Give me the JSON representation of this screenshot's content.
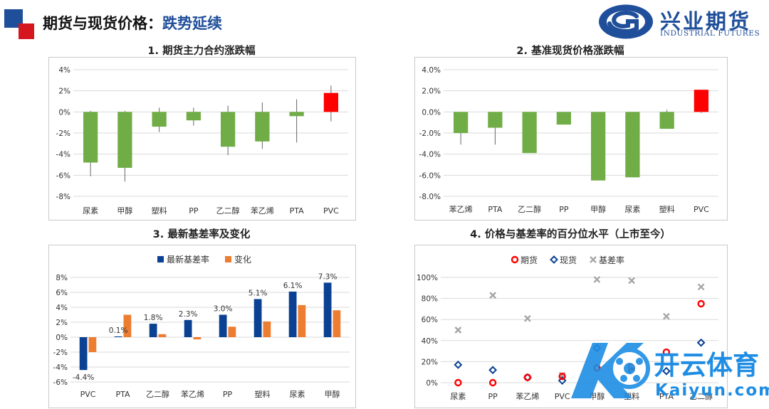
{
  "page": {
    "title_prefix": "期货与现货价格：",
    "title_highlight": "跌势延续"
  },
  "brand": {
    "name_cn": "兴业期货",
    "name_en": "INDUSTRIAL FUTURES"
  },
  "watermark": {
    "name_cn": "开云体育",
    "domain": "Kaiyun.com"
  },
  "colors": {
    "green": "#70ad47",
    "red": "#ff0000",
    "navy": "#0b4192",
    "orange": "#ed7d31",
    "gray": "#a6a6a6",
    "brand_blue": "#1f4e9a"
  },
  "chart_data": [
    {
      "id": "chart1",
      "type": "bar",
      "title": "1. 期货主力合约涨跌幅",
      "categories": [
        "尿素",
        "甲醇",
        "塑料",
        "PP",
        "乙二醇",
        "苯乙烯",
        "PTA",
        "PVC"
      ],
      "values": [
        -4.8,
        -5.3,
        -1.4,
        -0.8,
        -3.3,
        -2.8,
        -0.4,
        1.8
      ],
      "range_high": [
        0.1,
        0.1,
        0.4,
        0.4,
        0.6,
        0.9,
        1.2,
        2.5
      ],
      "range_low": [
        -6.1,
        -6.6,
        -1.9,
        -1.3,
        -4.1,
        -3.5,
        -2.9,
        -0.9
      ],
      "ylim": [
        -8,
        4
      ],
      "yticks": [
        "4%",
        "2%",
        "0%",
        "-2%",
        "-4%",
        "-6%",
        "-8%"
      ],
      "grid": true,
      "legend": "none"
    },
    {
      "id": "chart2",
      "type": "bar",
      "title": "2. 基准现货价格涨跌幅",
      "categories": [
        "苯乙烯",
        "PTA",
        "乙二醇",
        "PP",
        "甲醇",
        "尿素",
        "塑料",
        "PVC"
      ],
      "values": [
        -2.0,
        -1.5,
        -3.9,
        -1.2,
        -6.5,
        -6.2,
        -1.6,
        2.1
      ],
      "range_high": [
        0,
        0,
        0,
        0,
        0,
        0,
        0.2,
        2.1
      ],
      "range_low": [
        -3.1,
        -3.1,
        -3.9,
        -1.2,
        -6.5,
        -6.2,
        -1.6,
        -0.1
      ],
      "ylim": [
        -8,
        4
      ],
      "yticks": [
        "4.0%",
        "2.0%",
        "0.0%",
        "-2.0%",
        "-4.0%",
        "-6.0%",
        "-8.0%"
      ],
      "grid": true,
      "legend": "none"
    },
    {
      "id": "chart3",
      "type": "bar",
      "title": "3. 最新基差率及变化",
      "categories": [
        "PVC",
        "PTA",
        "乙二醇",
        "苯乙烯",
        "PP",
        "塑料",
        "尿素",
        "甲醇"
      ],
      "series": [
        {
          "name": "最新基差率",
          "values": [
            -4.4,
            0.1,
            1.8,
            2.3,
            3.0,
            5.1,
            6.1,
            7.3
          ],
          "labels": [
            "-4.4%",
            "0.1%",
            "1.8%",
            "2.3%",
            "3.0%",
            "5.1%",
            "6.1%",
            "7.3%"
          ]
        },
        {
          "name": "变化",
          "values": [
            -2.0,
            3.0,
            0.4,
            -0.3,
            1.4,
            2.1,
            4.3,
            3.6
          ]
        }
      ],
      "ylim": [
        -6,
        8
      ],
      "yticks": [
        "8%",
        "6%",
        "4%",
        "2%",
        "0%",
        "-2%",
        "-4%",
        "-6%"
      ],
      "grid": true,
      "legend": "top"
    },
    {
      "id": "chart4",
      "type": "scatter",
      "title": "4. 价格与基差率的百分位水平（上市至今）",
      "categories": [
        "尿素",
        "PP",
        "苯乙烯",
        "PVC",
        "甲醇",
        "塑料",
        "PTA",
        "乙二醇"
      ],
      "series": [
        {
          "name": "期货",
          "values": [
            0,
            0,
            5,
            6,
            14,
            15,
            29,
            75
          ]
        },
        {
          "name": "现货",
          "values": [
            17,
            12,
            5,
            2,
            33,
            11,
            11,
            38
          ]
        },
        {
          "name": "基差率",
          "values": [
            50,
            83,
            61,
            7,
            98,
            97,
            63,
            91
          ]
        }
      ],
      "ylim": [
        0,
        100
      ],
      "yticks": [
        "100%",
        "80%",
        "60%",
        "40%",
        "20%",
        "0%"
      ],
      "grid": true,
      "legend": "top"
    }
  ]
}
